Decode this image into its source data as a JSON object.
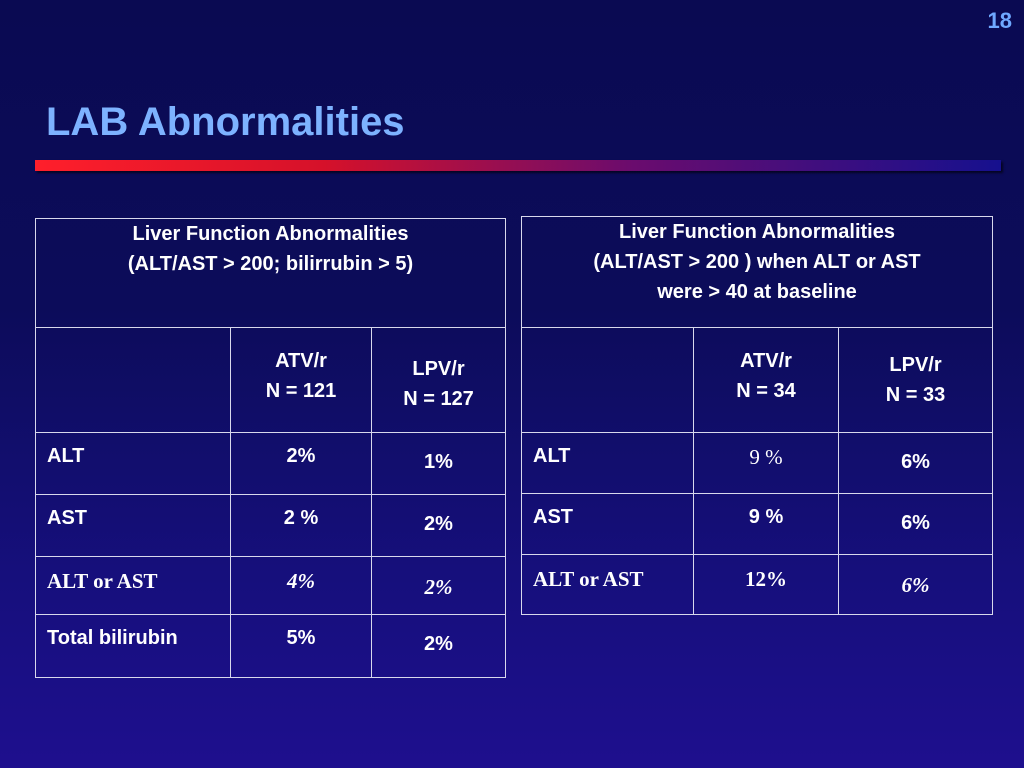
{
  "slide": {
    "number": "18",
    "title": "LAB Abnormalities"
  },
  "left_table": {
    "header": [
      "Liver Function Abnormalities",
      "(ALT/AST > 200; bilirrubin > 5)"
    ],
    "col_a": [
      "ATV/r",
      "N = 121"
    ],
    "col_b": [
      "LPV/r",
      "N = 127"
    ],
    "rows": [
      {
        "label": "ALT",
        "a": "2%",
        "b": "1%"
      },
      {
        "label": "AST",
        "a": "2 %",
        "b": "2%"
      },
      {
        "label": "ALT or AST",
        "a": "4%",
        "b": "2%"
      },
      {
        "label": "Total bilirubin",
        "a": "5%",
        "b": "2%"
      }
    ]
  },
  "right_table": {
    "header": [
      "Liver Function Abnormalities",
      "(ALT/AST > 200 ) when ALT or AST",
      "were > 40 at baseline"
    ],
    "col_a": [
      "ATV/r",
      "N = 34"
    ],
    "col_b": [
      "LPV/r",
      "N = 33"
    ],
    "rows": [
      {
        "label": "ALT",
        "a": "9 %",
        "b": "6%"
      },
      {
        "label": "AST",
        "a": "9 %",
        "b": "6%"
      },
      {
        "label": "ALT or AST",
        "a": "12%",
        "b": "6%"
      }
    ]
  }
}
